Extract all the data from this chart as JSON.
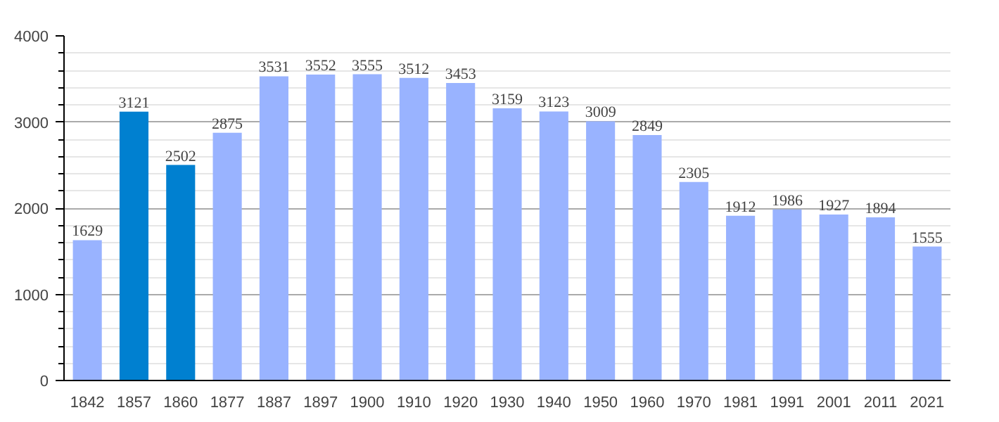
{
  "chart_data": {
    "type": "bar",
    "categories": [
      "1842",
      "1857",
      "1860",
      "1877",
      "1887",
      "1897",
      "1900",
      "1910",
      "1920",
      "1930",
      "1940",
      "1950",
      "1960",
      "1970",
      "1981",
      "1991",
      "2001",
      "2011",
      "2021"
    ],
    "values": [
      1629,
      3121,
      2502,
      2875,
      3531,
      3552,
      3555,
      3512,
      3453,
      3159,
      3123,
      3009,
      2849,
      2305,
      1912,
      1986,
      1927,
      1894,
      1555
    ],
    "colors": [
      "#99b3ff",
      "#0080d0",
      "#0080d0",
      "#99b3ff",
      "#99b3ff",
      "#99b3ff",
      "#99b3ff",
      "#99b3ff",
      "#99b3ff",
      "#99b3ff",
      "#99b3ff",
      "#99b3ff",
      "#99b3ff",
      "#99b3ff",
      "#99b3ff",
      "#99b3ff",
      "#99b3ff",
      "#99b3ff",
      "#99b3ff"
    ],
    "ylim": [
      0,
      4000
    ],
    "yticks": [
      0,
      1000,
      2000,
      3000,
      4000
    ],
    "grid": "y",
    "data_labels": true
  }
}
